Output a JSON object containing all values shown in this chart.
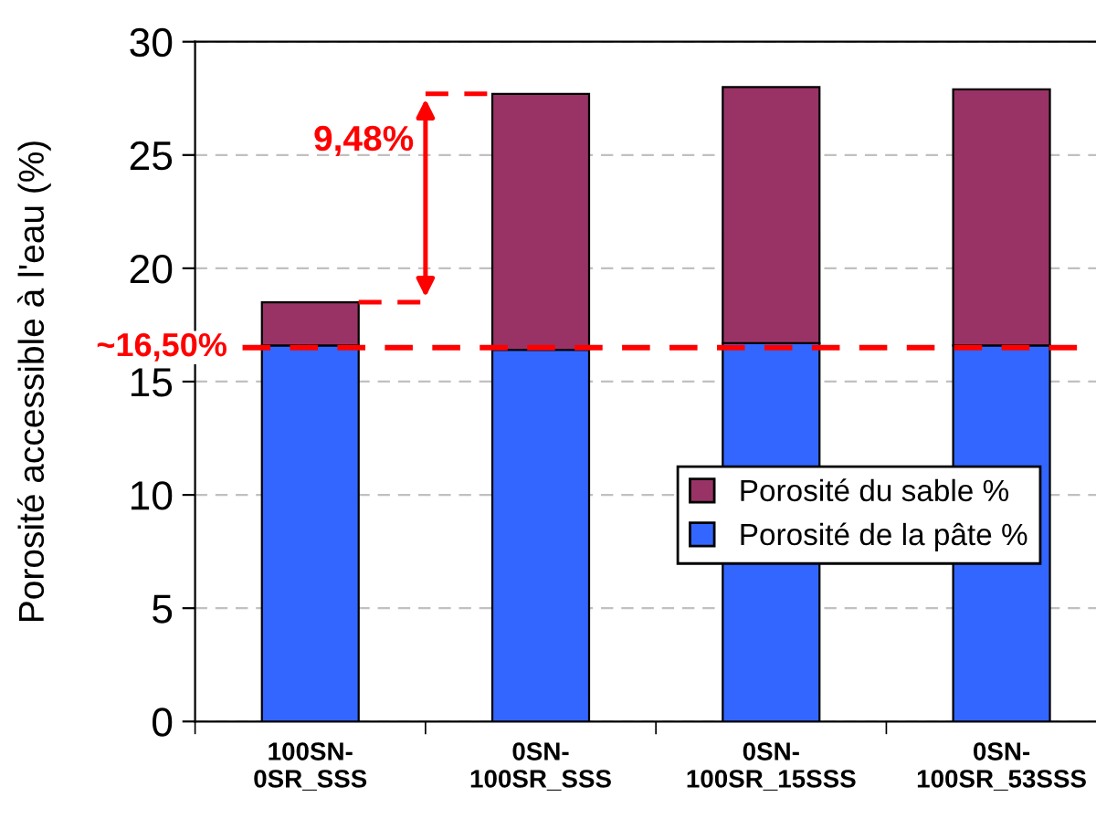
{
  "chart_data": {
    "type": "bar",
    "stacked": true,
    "ylabel": "Porosité accessible à l'eau (%)",
    "categories": [
      "100SN-\n0SR_SSS",
      "0SN-\n100SR_SSS",
      "0SN-\n100SR_15SSS",
      "0SN-\n100SR_53SSS"
    ],
    "series": [
      {
        "name": "Porosité de la pâte %",
        "color": "#3366ff",
        "values": [
          16.6,
          16.4,
          16.7,
          16.6
        ]
      },
      {
        "name": "Porosité du sable %",
        "color": "#993366",
        "values": [
          1.9,
          11.3,
          11.3,
          11.3
        ]
      }
    ],
    "ylim": [
      0,
      30
    ],
    "yticks": [
      0,
      5,
      10,
      15,
      20,
      25,
      30
    ],
    "grid": "y",
    "legend": "bottom right",
    "ref_lines": [
      {
        "axis": "y",
        "value": 16.5,
        "label": "~16,50%",
        "color": "#ff0000",
        "line_style": "dashed"
      }
    ],
    "annotations": [
      "9,48%"
    ]
  }
}
